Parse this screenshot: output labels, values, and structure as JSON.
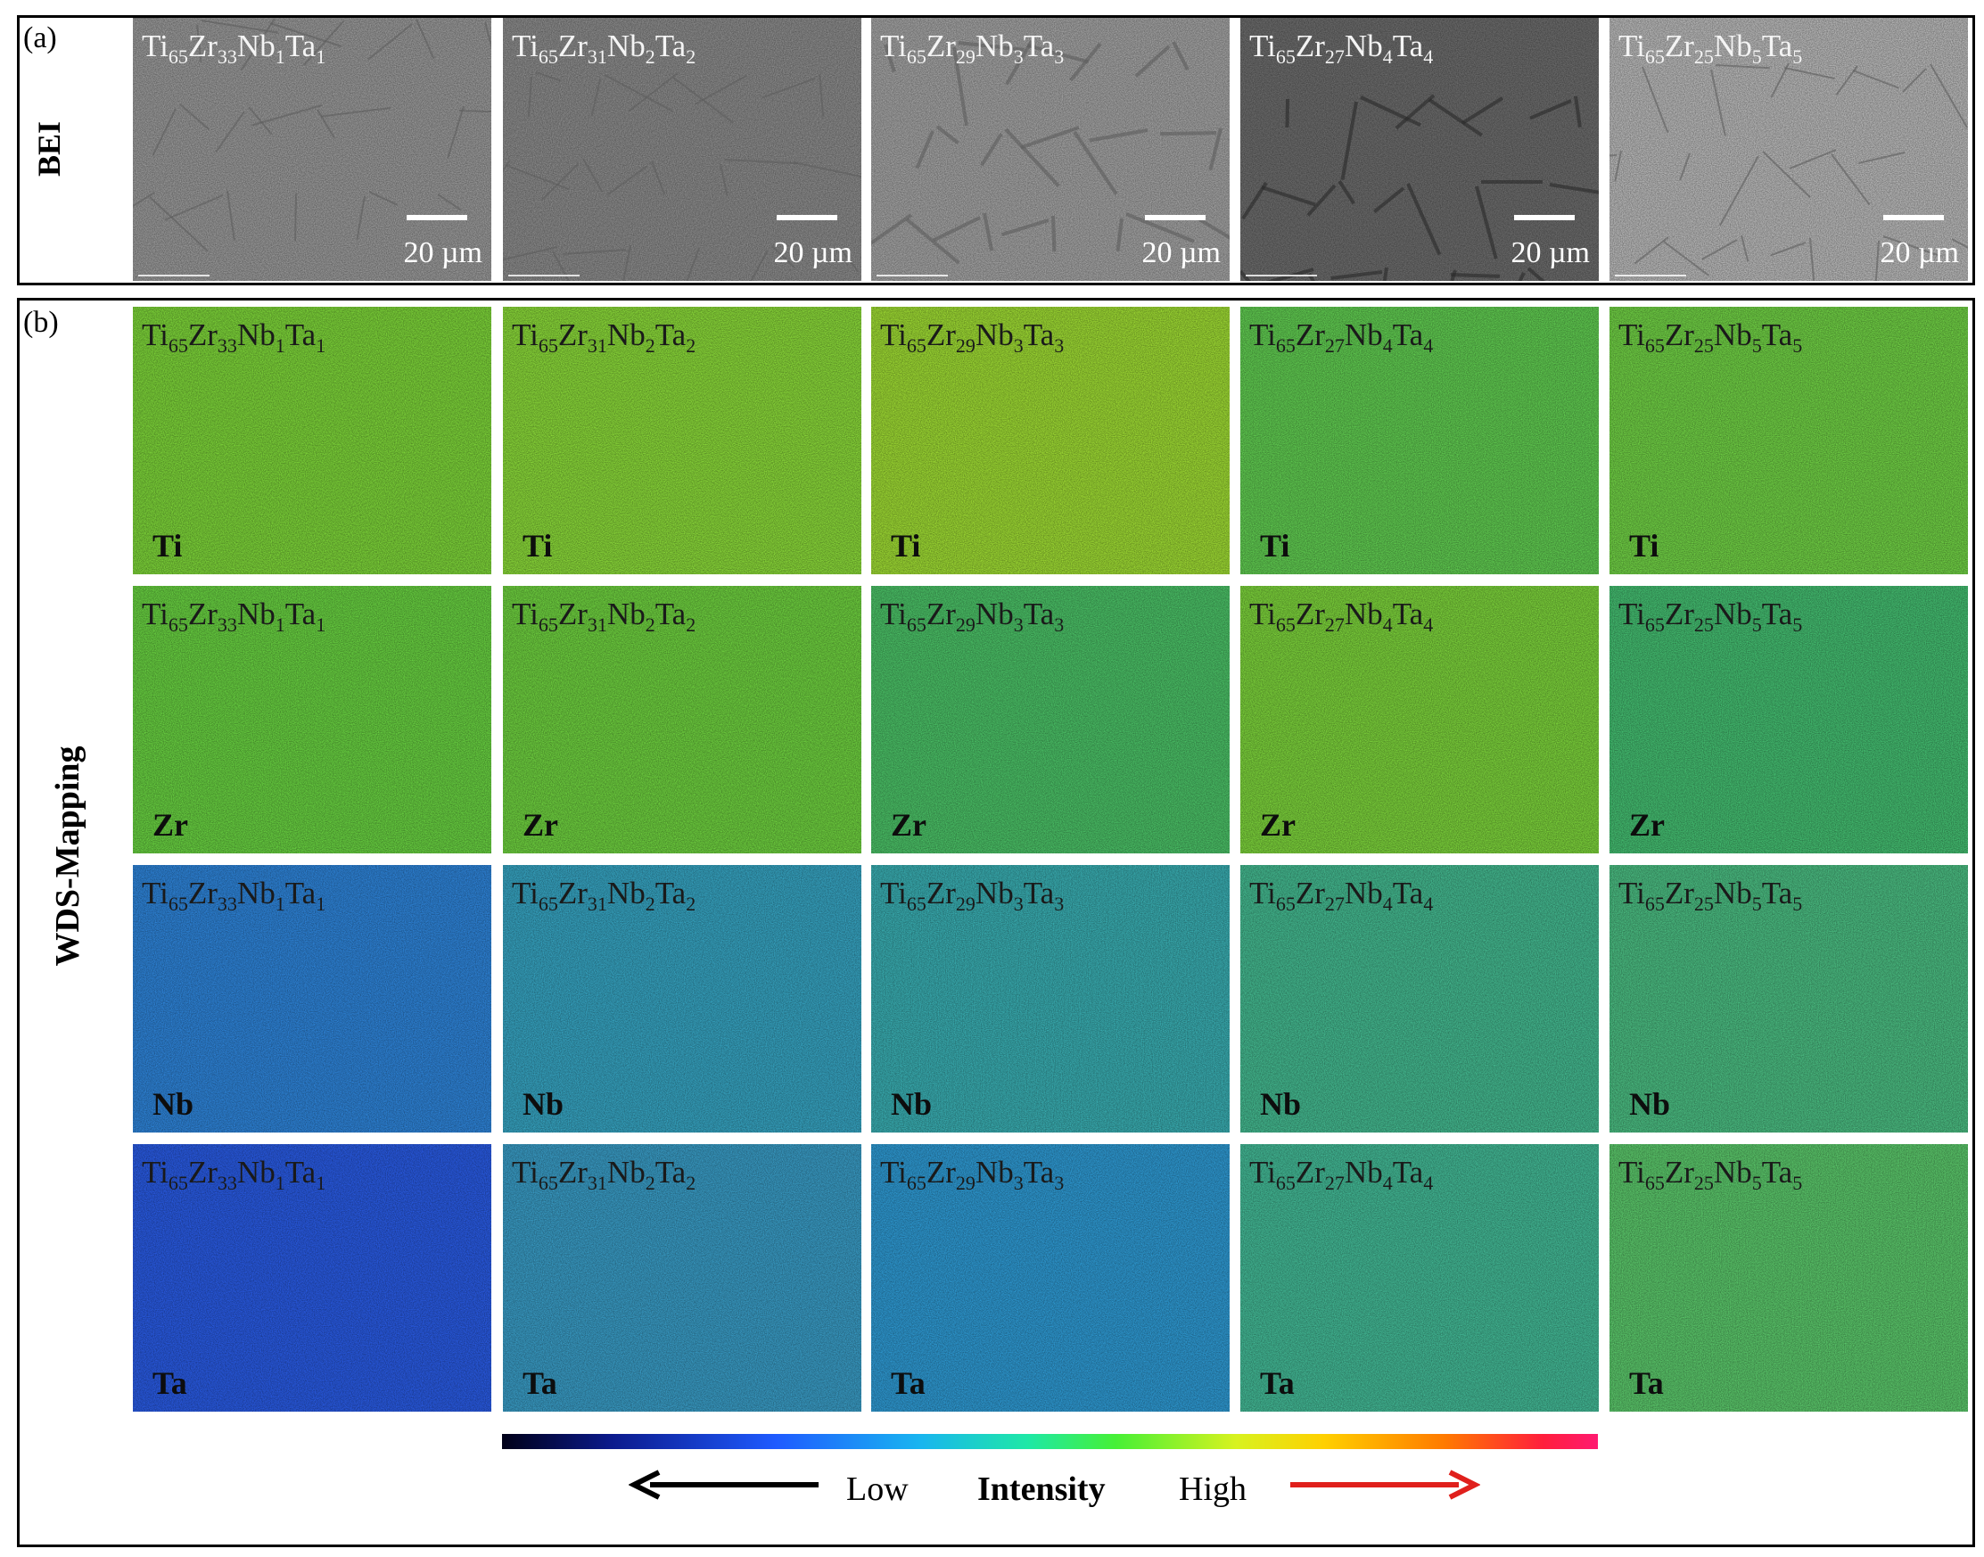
{
  "panel_a": {
    "label": "(a)",
    "row_label": "BEI",
    "scale_label": "20 µm",
    "tiles": [
      {
        "formula": [
          [
            "Ti",
            "65"
          ],
          [
            "Zr",
            "33"
          ],
          [
            "Nb",
            "1"
          ],
          [
            "Ta",
            "1"
          ]
        ],
        "tone": "#9c9c9c"
      },
      {
        "formula": [
          [
            "Ti",
            "65"
          ],
          [
            "Zr",
            "31"
          ],
          [
            "Nb",
            "2"
          ],
          [
            "Ta",
            "2"
          ]
        ],
        "tone": "#8e8e8e"
      },
      {
        "formula": [
          [
            "Ti",
            "65"
          ],
          [
            "Zr",
            "29"
          ],
          [
            "Nb",
            "3"
          ],
          [
            "Ta",
            "3"
          ]
        ],
        "tone": "#a6a6a6"
      },
      {
        "formula": [
          [
            "Ti",
            "65"
          ],
          [
            "Zr",
            "27"
          ],
          [
            "Nb",
            "4"
          ],
          [
            "Ta",
            "4"
          ]
        ],
        "tone": "#6e6e6e"
      },
      {
        "formula": [
          [
            "Ti",
            "65"
          ],
          [
            "Zr",
            "25"
          ],
          [
            "Nb",
            "5"
          ],
          [
            "Ta",
            "5"
          ]
        ],
        "tone": "#bcbcbc"
      }
    ]
  },
  "panel_b": {
    "label": "(b)",
    "row_label": "WDS-Mapping",
    "formulas": [
      [
        [
          "Ti",
          "65"
        ],
        [
          "Zr",
          "33"
        ],
        [
          "Nb",
          "1"
        ],
        [
          "Ta",
          "1"
        ]
      ],
      [
        [
          "Ti",
          "65"
        ],
        [
          "Zr",
          "31"
        ],
        [
          "Nb",
          "2"
        ],
        [
          "Ta",
          "2"
        ]
      ],
      [
        [
          "Ti",
          "65"
        ],
        [
          "Zr",
          "29"
        ],
        [
          "Nb",
          "3"
        ],
        [
          "Ta",
          "3"
        ]
      ],
      [
        [
          "Ti",
          "65"
        ],
        [
          "Zr",
          "27"
        ],
        [
          "Nb",
          "4"
        ],
        [
          "Ta",
          "4"
        ]
      ],
      [
        [
          "Ti",
          "65"
        ],
        [
          "Zr",
          "25"
        ],
        [
          "Nb",
          "5"
        ],
        [
          "Ta",
          "5"
        ]
      ]
    ],
    "rows": [
      {
        "element": "Ti",
        "colors": [
          "#7fd83a",
          "#8cdc3a",
          "#a0de34",
          "#62cf52",
          "#72d446"
        ]
      },
      {
        "element": "Zr",
        "colors": [
          "#6ad442",
          "#70d440",
          "#4cc468",
          "#7ed63c",
          "#45c072"
        ]
      },
      {
        "element": "Nb",
        "colors": [
          "#2f86dc",
          "#37a6c4",
          "#3ab0b4",
          "#45bc92",
          "#4cc084"
        ]
      },
      {
        "element": "Ta",
        "colors": [
          "#2a5ce6",
          "#3a9ec8",
          "#2f9cd6",
          "#44bc98",
          "#5cca6c"
        ]
      }
    ]
  },
  "intensity_scale": {
    "low": "Low",
    "title": "Intensity",
    "high": "High",
    "left_arrow_color": "#000000",
    "right_arrow_color": "#e0201c"
  }
}
